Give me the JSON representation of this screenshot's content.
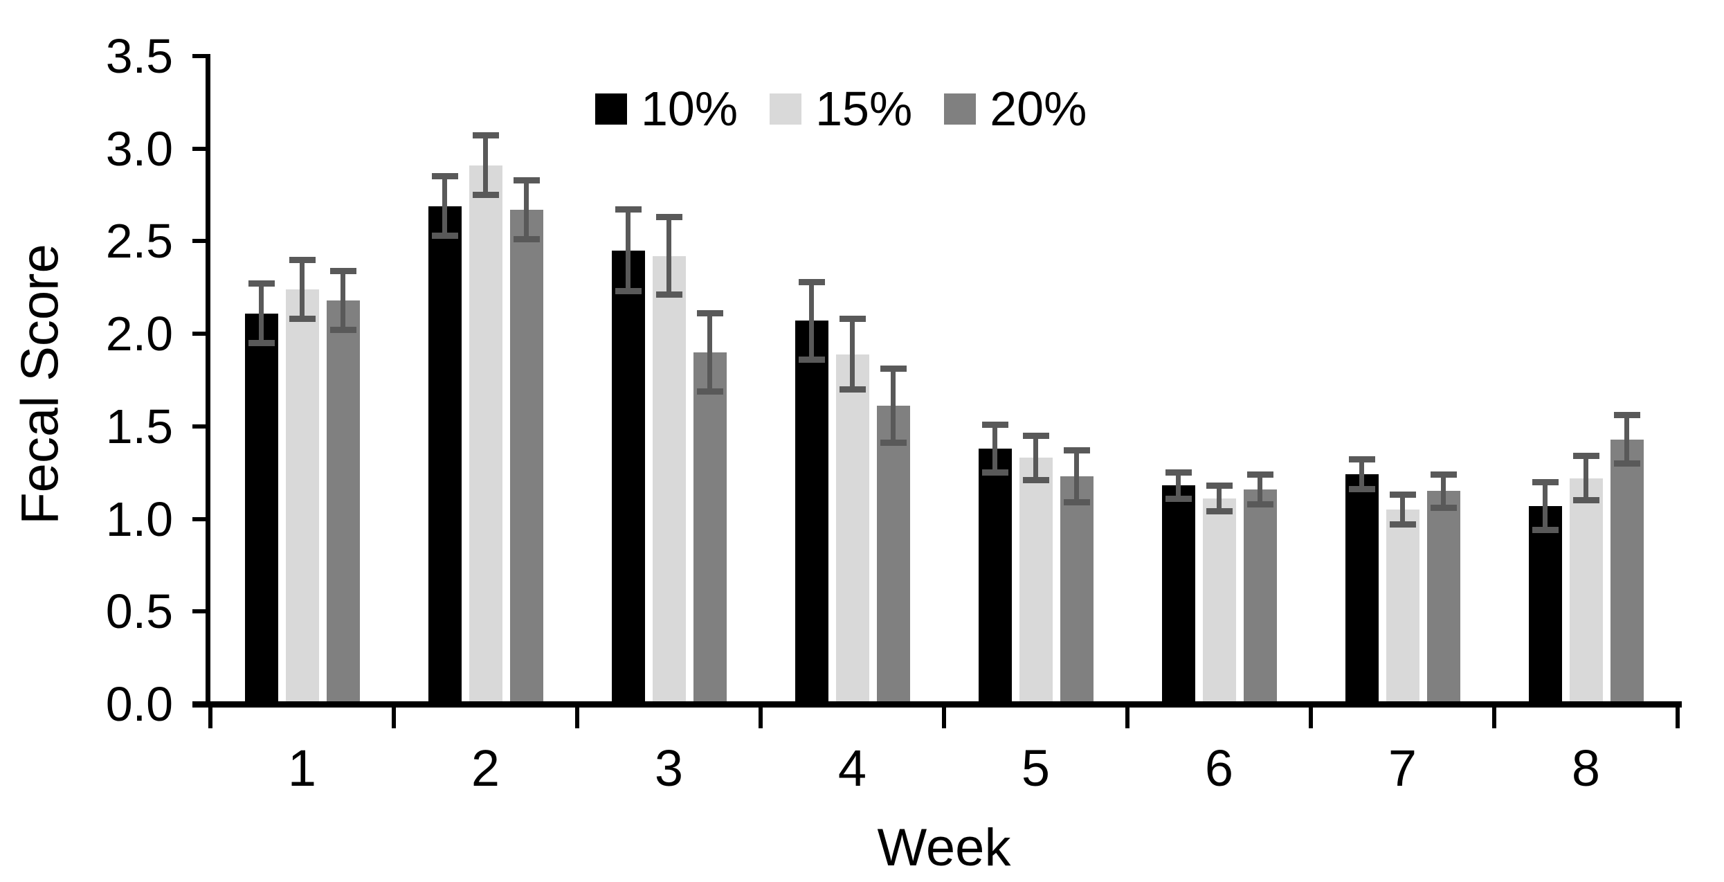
{
  "chart_data": {
    "type": "bar",
    "title": "",
    "xlabel": "Week",
    "ylabel": "Fecal Score",
    "categories": [
      "1",
      "2",
      "3",
      "4",
      "5",
      "6",
      "7",
      "8"
    ],
    "series": [
      {
        "name": "10%",
        "color": "#000000",
        "values": [
          2.11,
          2.69,
          2.45,
          2.07,
          1.38,
          1.18,
          1.24,
          1.07
        ],
        "errors": [
          0.16,
          0.16,
          0.22,
          0.21,
          0.13,
          0.07,
          0.08,
          0.13
        ]
      },
      {
        "name": "15%",
        "color": "#d9d9d9",
        "values": [
          2.24,
          2.91,
          2.42,
          1.89,
          1.33,
          1.11,
          1.05,
          1.22
        ],
        "errors": [
          0.16,
          0.16,
          0.21,
          0.19,
          0.12,
          0.07,
          0.08,
          0.12
        ]
      },
      {
        "name": "20%",
        "color": "#808080",
        "values": [
          2.18,
          2.67,
          1.9,
          1.61,
          1.23,
          1.16,
          1.15,
          1.43
        ],
        "errors": [
          0.16,
          0.16,
          0.21,
          0.2,
          0.14,
          0.08,
          0.09,
          0.13
        ]
      }
    ],
    "ylim": [
      0.0,
      3.5
    ],
    "ytick_step": 0.5,
    "ytick_labels": [
      "0.0",
      "0.5",
      "1.0",
      "1.5",
      "2.0",
      "2.5",
      "3.0",
      "3.5"
    ],
    "grid": false,
    "legend_position": "top-center",
    "error_bar_color": "#595959",
    "axis_color": "#000000",
    "background_color": "#ffffff"
  }
}
